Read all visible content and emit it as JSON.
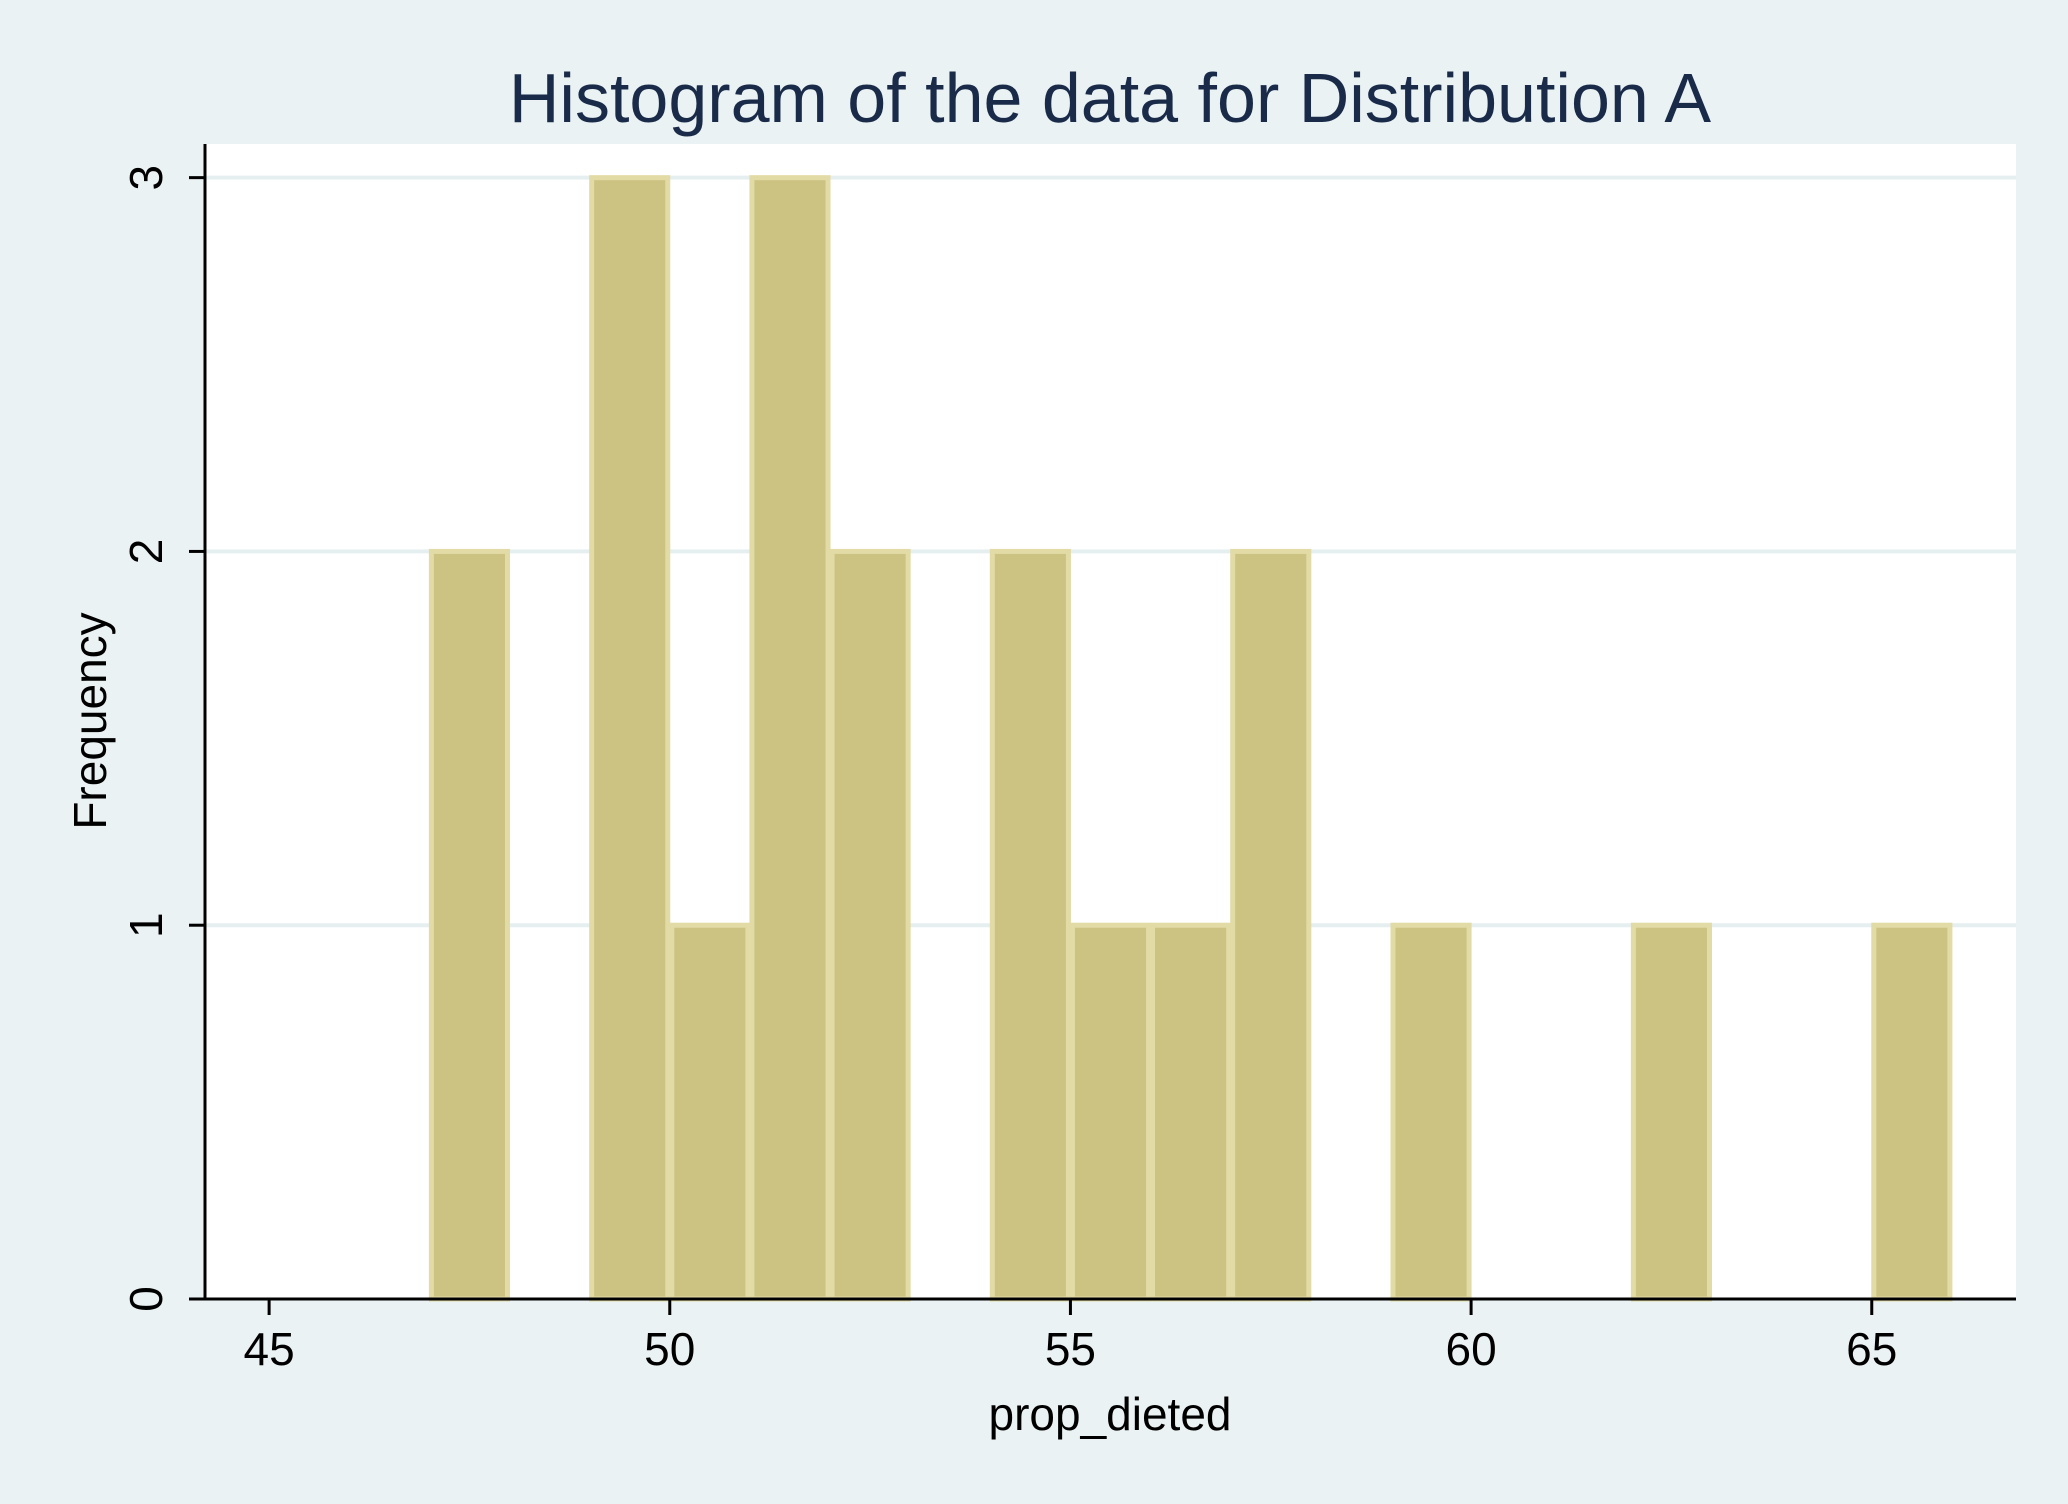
{
  "chart_data": {
    "type": "bar",
    "title": "Histogram of the data for Distribution A",
    "xlabel": "prop_dieted",
    "ylabel": "Frequency",
    "xlim": [
      44.2,
      66.8
    ],
    "ylim": [
      0,
      3.09
    ],
    "x_ticks": [
      "45",
      "50",
      "55",
      "60",
      "65"
    ],
    "y_ticks": [
      "0",
      "1",
      "2",
      "3"
    ],
    "grid": true,
    "bin_width": 1,
    "bins": [
      {
        "start": 47,
        "value": 2
      },
      {
        "start": 49,
        "value": 3
      },
      {
        "start": 50,
        "value": 1
      },
      {
        "start": 51,
        "value": 3
      },
      {
        "start": 52,
        "value": 2
      },
      {
        "start": 54,
        "value": 2
      },
      {
        "start": 55,
        "value": 1
      },
      {
        "start": 56,
        "value": 1
      },
      {
        "start": 57,
        "value": 2
      },
      {
        "start": 59,
        "value": 1
      },
      {
        "start": 62,
        "value": 1
      },
      {
        "start": 65,
        "value": 1
      }
    ],
    "colors": {
      "background": "#eaf2f3",
      "plot": "#ffffff",
      "bar_fill": "#ccc382",
      "bar_edge": "#e2dba6",
      "grid": "#e6eff0",
      "title": "#1a2b4a"
    }
  }
}
